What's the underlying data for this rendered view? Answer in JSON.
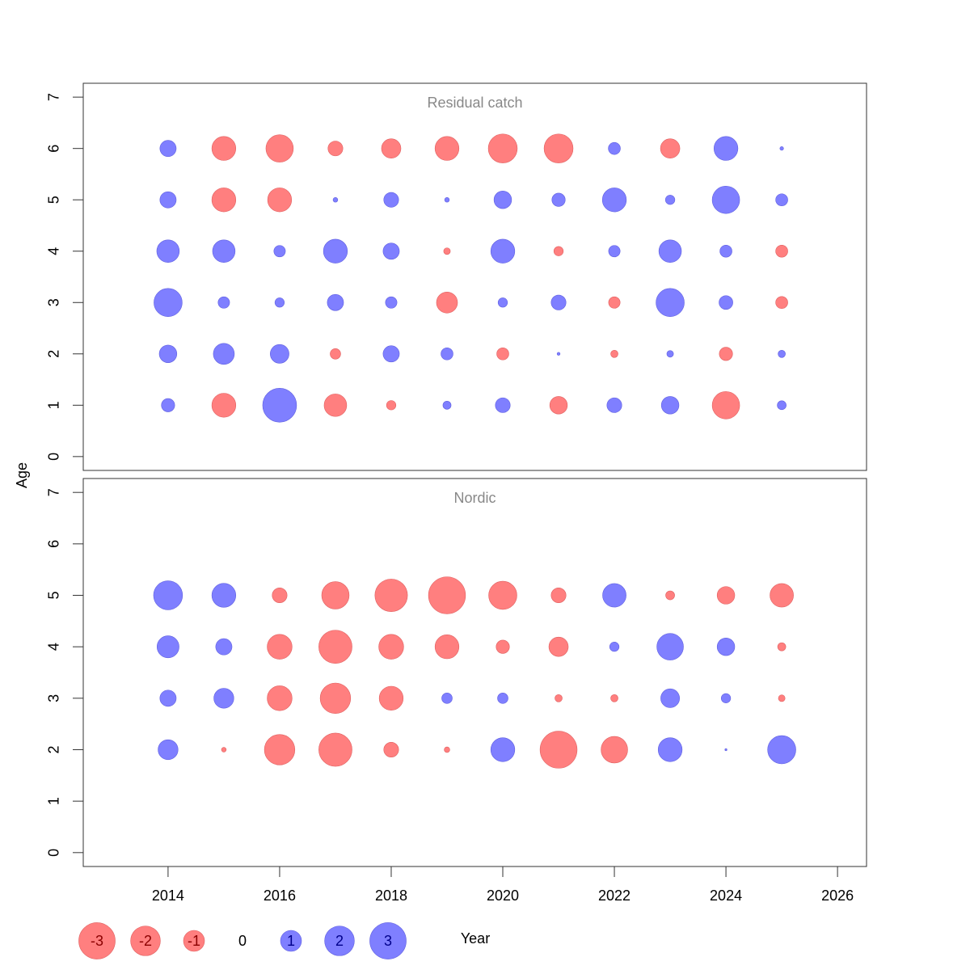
{
  "chart_data": {
    "type": "bubble",
    "x_label": "Year",
    "y_label": "Age",
    "xlim": [
      2012.48,
      2026.52
    ],
    "xticks": [
      2014,
      2016,
      2018,
      2020,
      2022,
      2024,
      2026
    ],
    "ylim": [
      -0.27,
      7.27
    ],
    "yticks": [
      0,
      1,
      2,
      3,
      4,
      5,
      6,
      7
    ],
    "positive_color": "#7f7fff",
    "negative_color": "#ff7f7f",
    "panels": [
      {
        "title": "Residual catch",
        "x": [
          2014,
          2015,
          2016,
          2017,
          2018,
          2019,
          2020,
          2021,
          2022,
          2023,
          2024,
          2025
        ],
        "y": [
          6,
          5,
          4,
          3,
          2,
          1
        ],
        "values": [
          [
            0.6,
            -1.3,
            -1.7,
            -0.5,
            -0.85,
            -1.3,
            -1.9,
            -1.9,
            0.33,
            -0.85,
            1.3,
            0.03
          ],
          [
            0.6,
            -1.3,
            -1.3,
            0.05,
            0.5,
            0.05,
            0.7,
            0.4,
            1.3,
            0.2,
            1.7,
            0.33
          ],
          [
            1.15,
            1.15,
            0.3,
            1.3,
            0.6,
            -0.1,
            1.3,
            -0.2,
            0.3,
            1.15,
            0.33,
            -0.33
          ],
          [
            1.8,
            0.3,
            0.2,
            0.6,
            0.3,
            -1.0,
            0.2,
            0.5,
            -0.3,
            1.8,
            0.43,
            -0.33
          ],
          [
            0.7,
            1.0,
            0.8,
            -0.25,
            0.6,
            0.33,
            -0.33,
            0.02,
            -0.12,
            0.1,
            -0.4,
            0.12
          ],
          [
            0.4,
            -1.3,
            2.6,
            -1.15,
            -0.2,
            0.15,
            0.5,
            -0.7,
            0.5,
            0.7,
            -1.7,
            0.18
          ]
        ]
      },
      {
        "title": "Nordic",
        "x": [
          2014,
          2015,
          2016,
          2017,
          2018,
          2019,
          2020,
          2021,
          2022,
          2023,
          2024,
          2025
        ],
        "y": [
          5,
          4,
          3,
          2
        ],
        "values": [
          [
            1.9,
            1.3,
            -0.5,
            -1.7,
            -2.4,
            -3.1,
            -1.8,
            -0.5,
            1.25,
            -0.18,
            -0.7,
            -1.25
          ],
          [
            1.1,
            0.6,
            -1.4,
            -2.5,
            -1.4,
            -1.3,
            -0.4,
            -0.85,
            0.2,
            1.6,
            0.7,
            -0.15
          ],
          [
            0.6,
            0.9,
            -1.4,
            -2.1,
            -1.3,
            0.25,
            0.25,
            -0.12,
            -0.12,
            0.8,
            0.2,
            -0.1
          ],
          [
            0.9,
            -0.05,
            -2.1,
            -2.5,
            -0.5,
            -0.07,
            1.3,
            -3.1,
            -1.6,
            1.3,
            0.01,
            1.8
          ]
        ]
      }
    ],
    "legend": [
      -3,
      -2,
      -1,
      0,
      1,
      2,
      3
    ]
  }
}
